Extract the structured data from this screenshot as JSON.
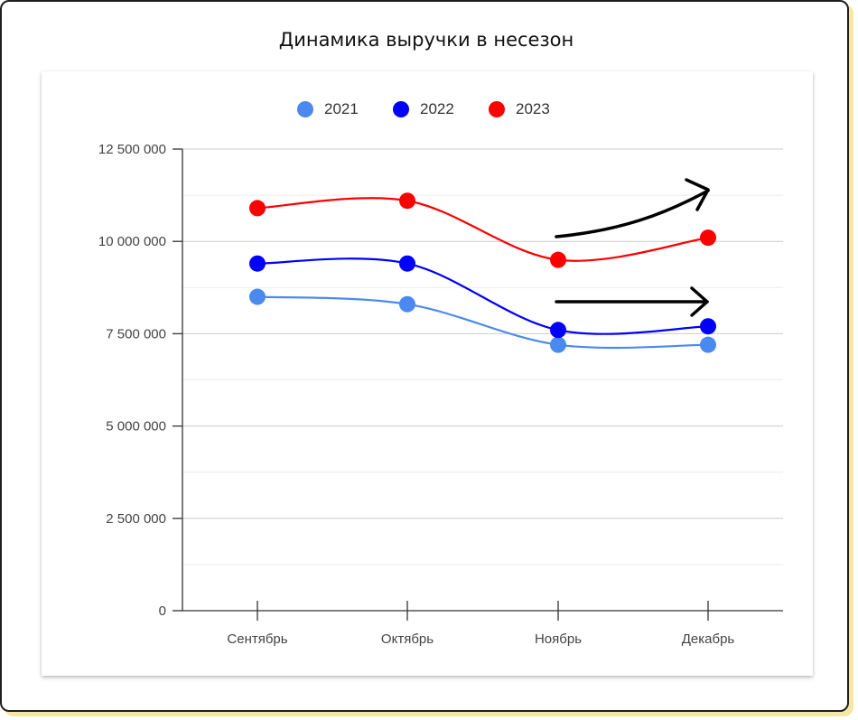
{
  "page": {
    "title": "Динамика выручки в несезон"
  },
  "chart_data": {
    "type": "line",
    "title": "Динамика выручки в несезон",
    "xlabel": "",
    "ylabel": "",
    "categories": [
      "Сентябрь",
      "Октябрь",
      "Ноябрь",
      "Декабрь"
    ],
    "series": [
      {
        "name": "2021",
        "color": "#4a8af0",
        "values": [
          8500000,
          8300000,
          7200000,
          7200000
        ]
      },
      {
        "name": "2022",
        "color": "#0000ff",
        "values": [
          9400000,
          9400000,
          7600000,
          7700000
        ]
      },
      {
        "name": "2023",
        "color": "#ff0000",
        "values": [
          10900000,
          11100000,
          9500000,
          10100000
        ]
      }
    ],
    "ylim": [
      0,
      12500000
    ],
    "yticks": [
      0,
      2500000,
      5000000,
      7500000,
      10000000,
      12500000
    ],
    "ytick_labels": [
      "0",
      "2 500 000",
      "5 000 000",
      "7 500 000",
      "10 000 000",
      "12 500 000"
    ],
    "grid": true,
    "legend_position": "top",
    "annotations": [
      {
        "kind": "arrow",
        "shape": "curved-up",
        "color": "#000000"
      },
      {
        "kind": "arrow",
        "shape": "straight",
        "color": "#000000"
      }
    ]
  }
}
